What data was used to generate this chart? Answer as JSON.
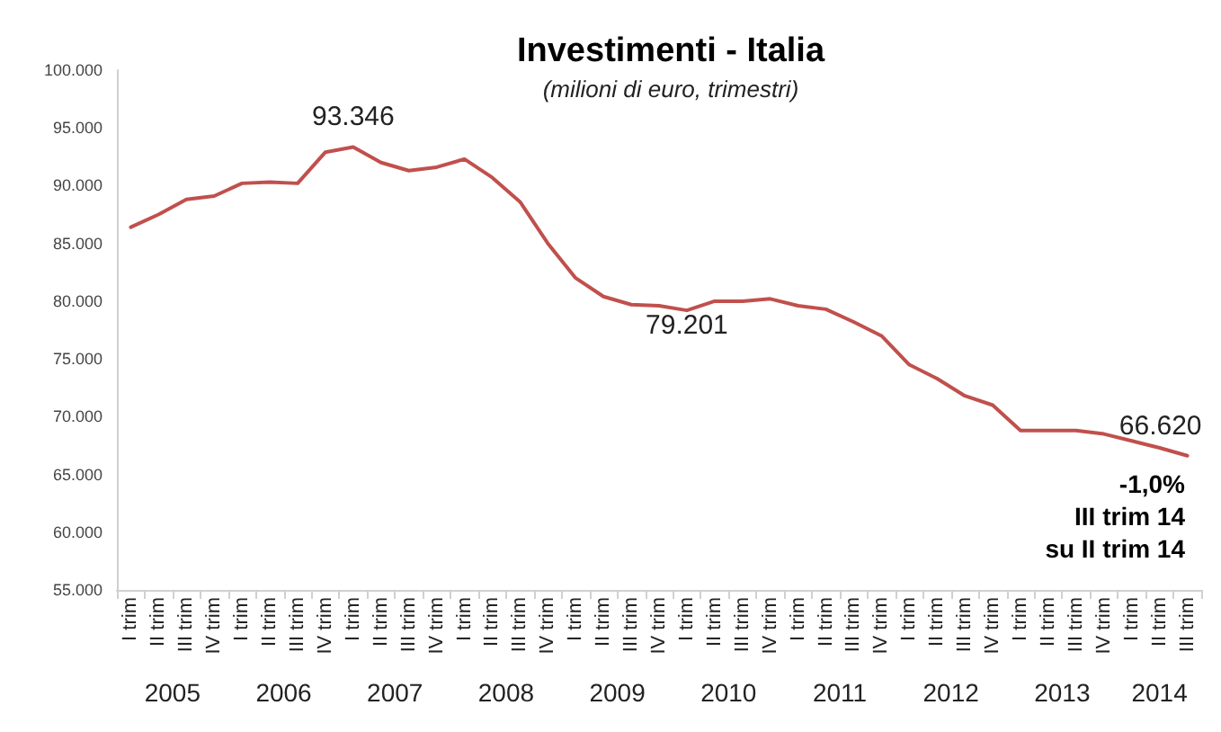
{
  "chart_data": {
    "type": "line",
    "title": "Investimenti - Italia",
    "subtitle": "(milioni di euro, trimestri)",
    "categories": [
      "I trim",
      "II trim",
      "III trim",
      "IV trim",
      "I trim",
      "II trim",
      "III trim",
      "IV trim",
      "I trim",
      "II trim",
      "III trim",
      "IV trim",
      "I trim",
      "II trim",
      "III trim",
      "IV trim",
      "I trim",
      "II trim",
      "III trim",
      "IV trim",
      "I trim",
      "II trim",
      "III trim",
      "IV trim",
      "I trim",
      "II trim",
      "III trim",
      "IV trim",
      "I trim",
      "II trim",
      "III trim",
      "IV trim",
      "I trim",
      "II trim",
      "III trim",
      "IV trim",
      "I trim",
      "II trim",
      "III trim"
    ],
    "series": [
      {
        "color": "#c0504d",
        "values": [
          86400,
          87500,
          88800,
          89100,
          90200,
          90300,
          90200,
          92900,
          93346,
          92000,
          91300,
          91600,
          92300,
          90700,
          88600,
          85000,
          82000,
          80400,
          79700,
          79600,
          79201,
          80000,
          80000,
          80200,
          79600,
          79300,
          78200,
          77000,
          74500,
          73300,
          71800,
          71000,
          68800,
          68800,
          68800,
          68500,
          67900,
          67300,
          66620
        ],
        "value_labels": [
          null,
          null,
          null,
          null,
          null,
          null,
          null,
          null,
          "93.346",
          null,
          null,
          null,
          null,
          null,
          null,
          null,
          null,
          null,
          null,
          null,
          "79.201",
          null,
          null,
          null,
          null,
          null,
          null,
          null,
          null,
          null,
          null,
          null,
          null,
          null,
          null,
          null,
          null,
          null,
          "66.620"
        ]
      }
    ],
    "ylim": [
      55000,
      100000
    ],
    "yticks": [
      {
        "value": 55000,
        "label": "55.000"
      },
      {
        "value": 60000,
        "label": "60.000"
      },
      {
        "value": 65000,
        "label": "65.000"
      },
      {
        "value": 70000,
        "label": "70.000"
      },
      {
        "value": 75000,
        "label": "75.000"
      },
      {
        "value": 80000,
        "label": "80.000"
      },
      {
        "value": 85000,
        "label": "85.000"
      },
      {
        "value": 90000,
        "label": "90.000"
      },
      {
        "value": 95000,
        "label": "95.000"
      },
      {
        "value": 100000,
        "label": "100.000"
      }
    ],
    "annotations": [
      "2005",
      "2006",
      "2007",
      "2008",
      "2009",
      "2010",
      "2011",
      "2012",
      "2013",
      "2014",
      "-1,0%\nIII trim 14\nsu II trim 14"
    ],
    "grid": false,
    "marker": "none",
    "line_style": "solid"
  }
}
